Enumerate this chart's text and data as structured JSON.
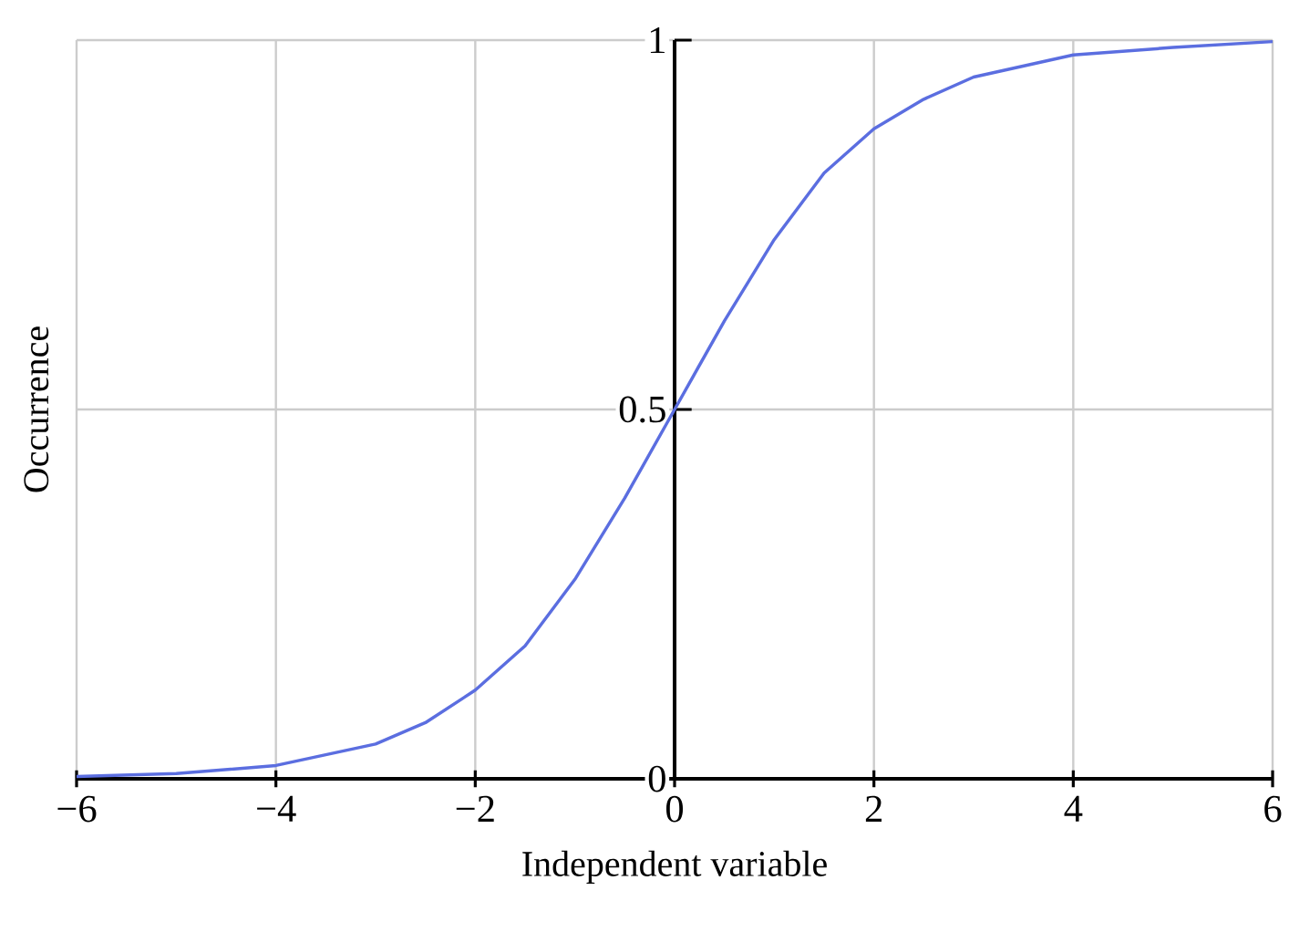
{
  "chart_data": {
    "type": "line",
    "xlabel": "Independent variable",
    "ylabel": "Occurrence",
    "x": [
      -6,
      -5,
      -4,
      -3,
      -2.5,
      -2,
      -1.5,
      -1,
      -0.5,
      0,
      0.5,
      1,
      1.5,
      2,
      2.5,
      3,
      4,
      5,
      6
    ],
    "series": [
      {
        "color": "#5b6ee0",
        "values": [
          0.003,
          0.007,
          0.018,
          0.047,
          0.076,
          0.12,
          0.18,
          0.27,
          0.38,
          0.5,
          0.62,
          0.73,
          0.82,
          0.88,
          0.92,
          0.95,
          0.98,
          0.99,
          0.998
        ]
      }
    ],
    "xlim": [
      -6,
      6
    ],
    "ylim": [
      0,
      1
    ],
    "xticks": [
      {
        "value": -6,
        "label": "−6"
      },
      {
        "value": -4,
        "label": "−4"
      },
      {
        "value": -2,
        "label": "−2"
      },
      0,
      2,
      4,
      6
    ],
    "yticks": [
      0,
      0.5,
      1
    ],
    "grid": true,
    "marker": "none",
    "line_style": "solid"
  }
}
